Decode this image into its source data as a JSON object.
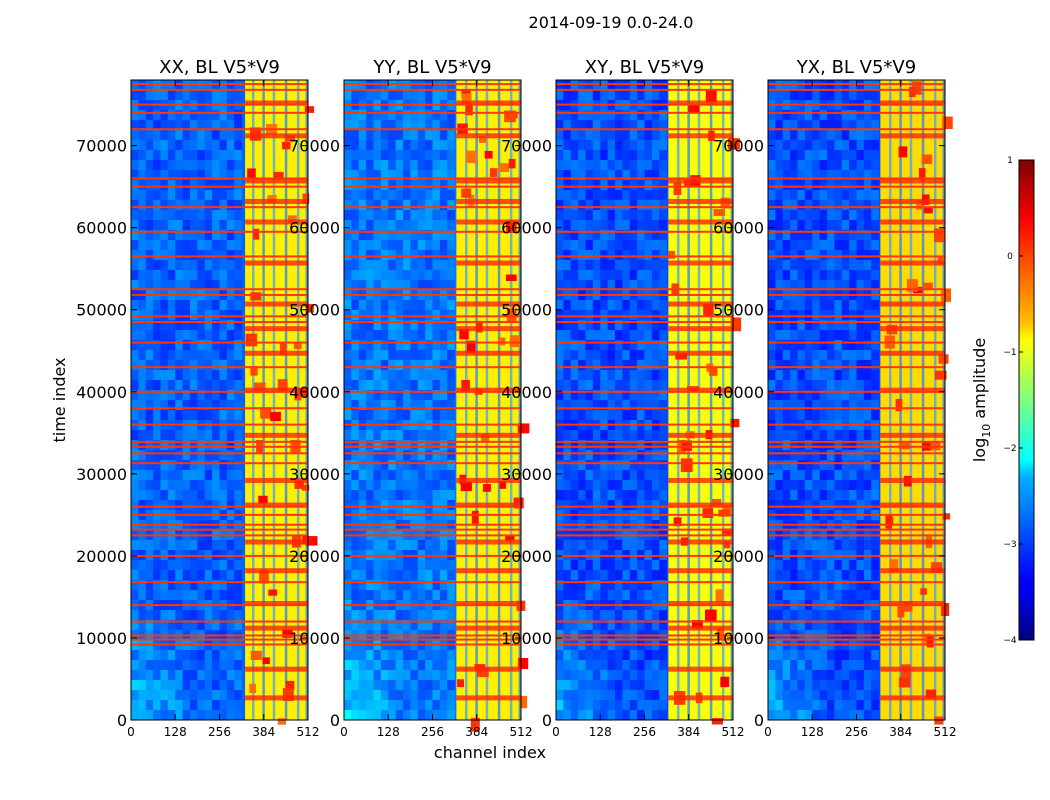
{
  "chart_data": {
    "type": "heatmap",
    "title": "2014-09-19 0.0-24.0",
    "xlabel": "channel index",
    "ylabel": "time index",
    "xlim": [
      0,
      512
    ],
    "ylim": [
      0,
      78000
    ],
    "xticks": [
      0,
      128,
      256,
      384,
      512
    ],
    "yticks": [
      0,
      10000,
      20000,
      30000,
      40000,
      50000,
      60000,
      70000
    ],
    "xticklabels": [
      "0",
      "128",
      "256",
      "384",
      "512"
    ],
    "yticklabels": [
      "0",
      "10000",
      "20000",
      "30000",
      "40000",
      "50000",
      "60000",
      "70000"
    ],
    "colorscale": "jet",
    "colorbar": {
      "label_prefix": "log",
      "label_sub": "10",
      "label_suffix": " amplitude",
      "range": [
        -4,
        1
      ],
      "ticks": [
        1,
        0,
        -1,
        -2,
        -3,
        -4
      ],
      "ticklabels": [
        "1",
        "0",
        "−1",
        "−2",
        "−3",
        "−4"
      ]
    },
    "colormap_stops": [
      "#00007f",
      "#0000ff",
      "#007fff",
      "#00ffff",
      "#7fff7f",
      "#ffff00",
      "#ff7f00",
      "#ff0000",
      "#7f0000"
    ],
    "panels": [
      {
        "name": "XX, BL V5*V9",
        "background_level": -2.9,
        "band_level": -0.8,
        "band_channels": [
          330,
          512
        ]
      },
      {
        "name": "YY, BL V5*V9",
        "background_level": -2.8,
        "band_level": -0.8,
        "band_channels": [
          325,
          512
        ]
      },
      {
        "name": "XY, BL V5*V9",
        "background_level": -3.0,
        "band_level": -0.9,
        "band_channels": [
          325,
          512
        ]
      },
      {
        "name": "YX, BL V5*V9",
        "background_level": -3.0,
        "band_level": -0.7,
        "band_channels": [
          325,
          512
        ]
      }
    ],
    "rfi_rows": [
      9200,
      9800,
      10300,
      12000,
      14000,
      16800,
      20000,
      22500,
      23200,
      23800,
      25000,
      26000,
      31300,
      32500,
      33300,
      33900,
      36000,
      38000,
      40000,
      43000,
      46000,
      48500,
      49200,
      51800,
      52500,
      56500,
      59500,
      62500,
      65000,
      66000,
      72000,
      74000,
      75000,
      76800,
      77500
    ],
    "strong_band_rows": [
      3000,
      6500,
      11500,
      14500,
      18500,
      22000,
      26500,
      29500,
      35000,
      40500,
      45000,
      48000,
      51000,
      56000,
      61000,
      63500,
      66000,
      71500,
      75500
    ]
  }
}
